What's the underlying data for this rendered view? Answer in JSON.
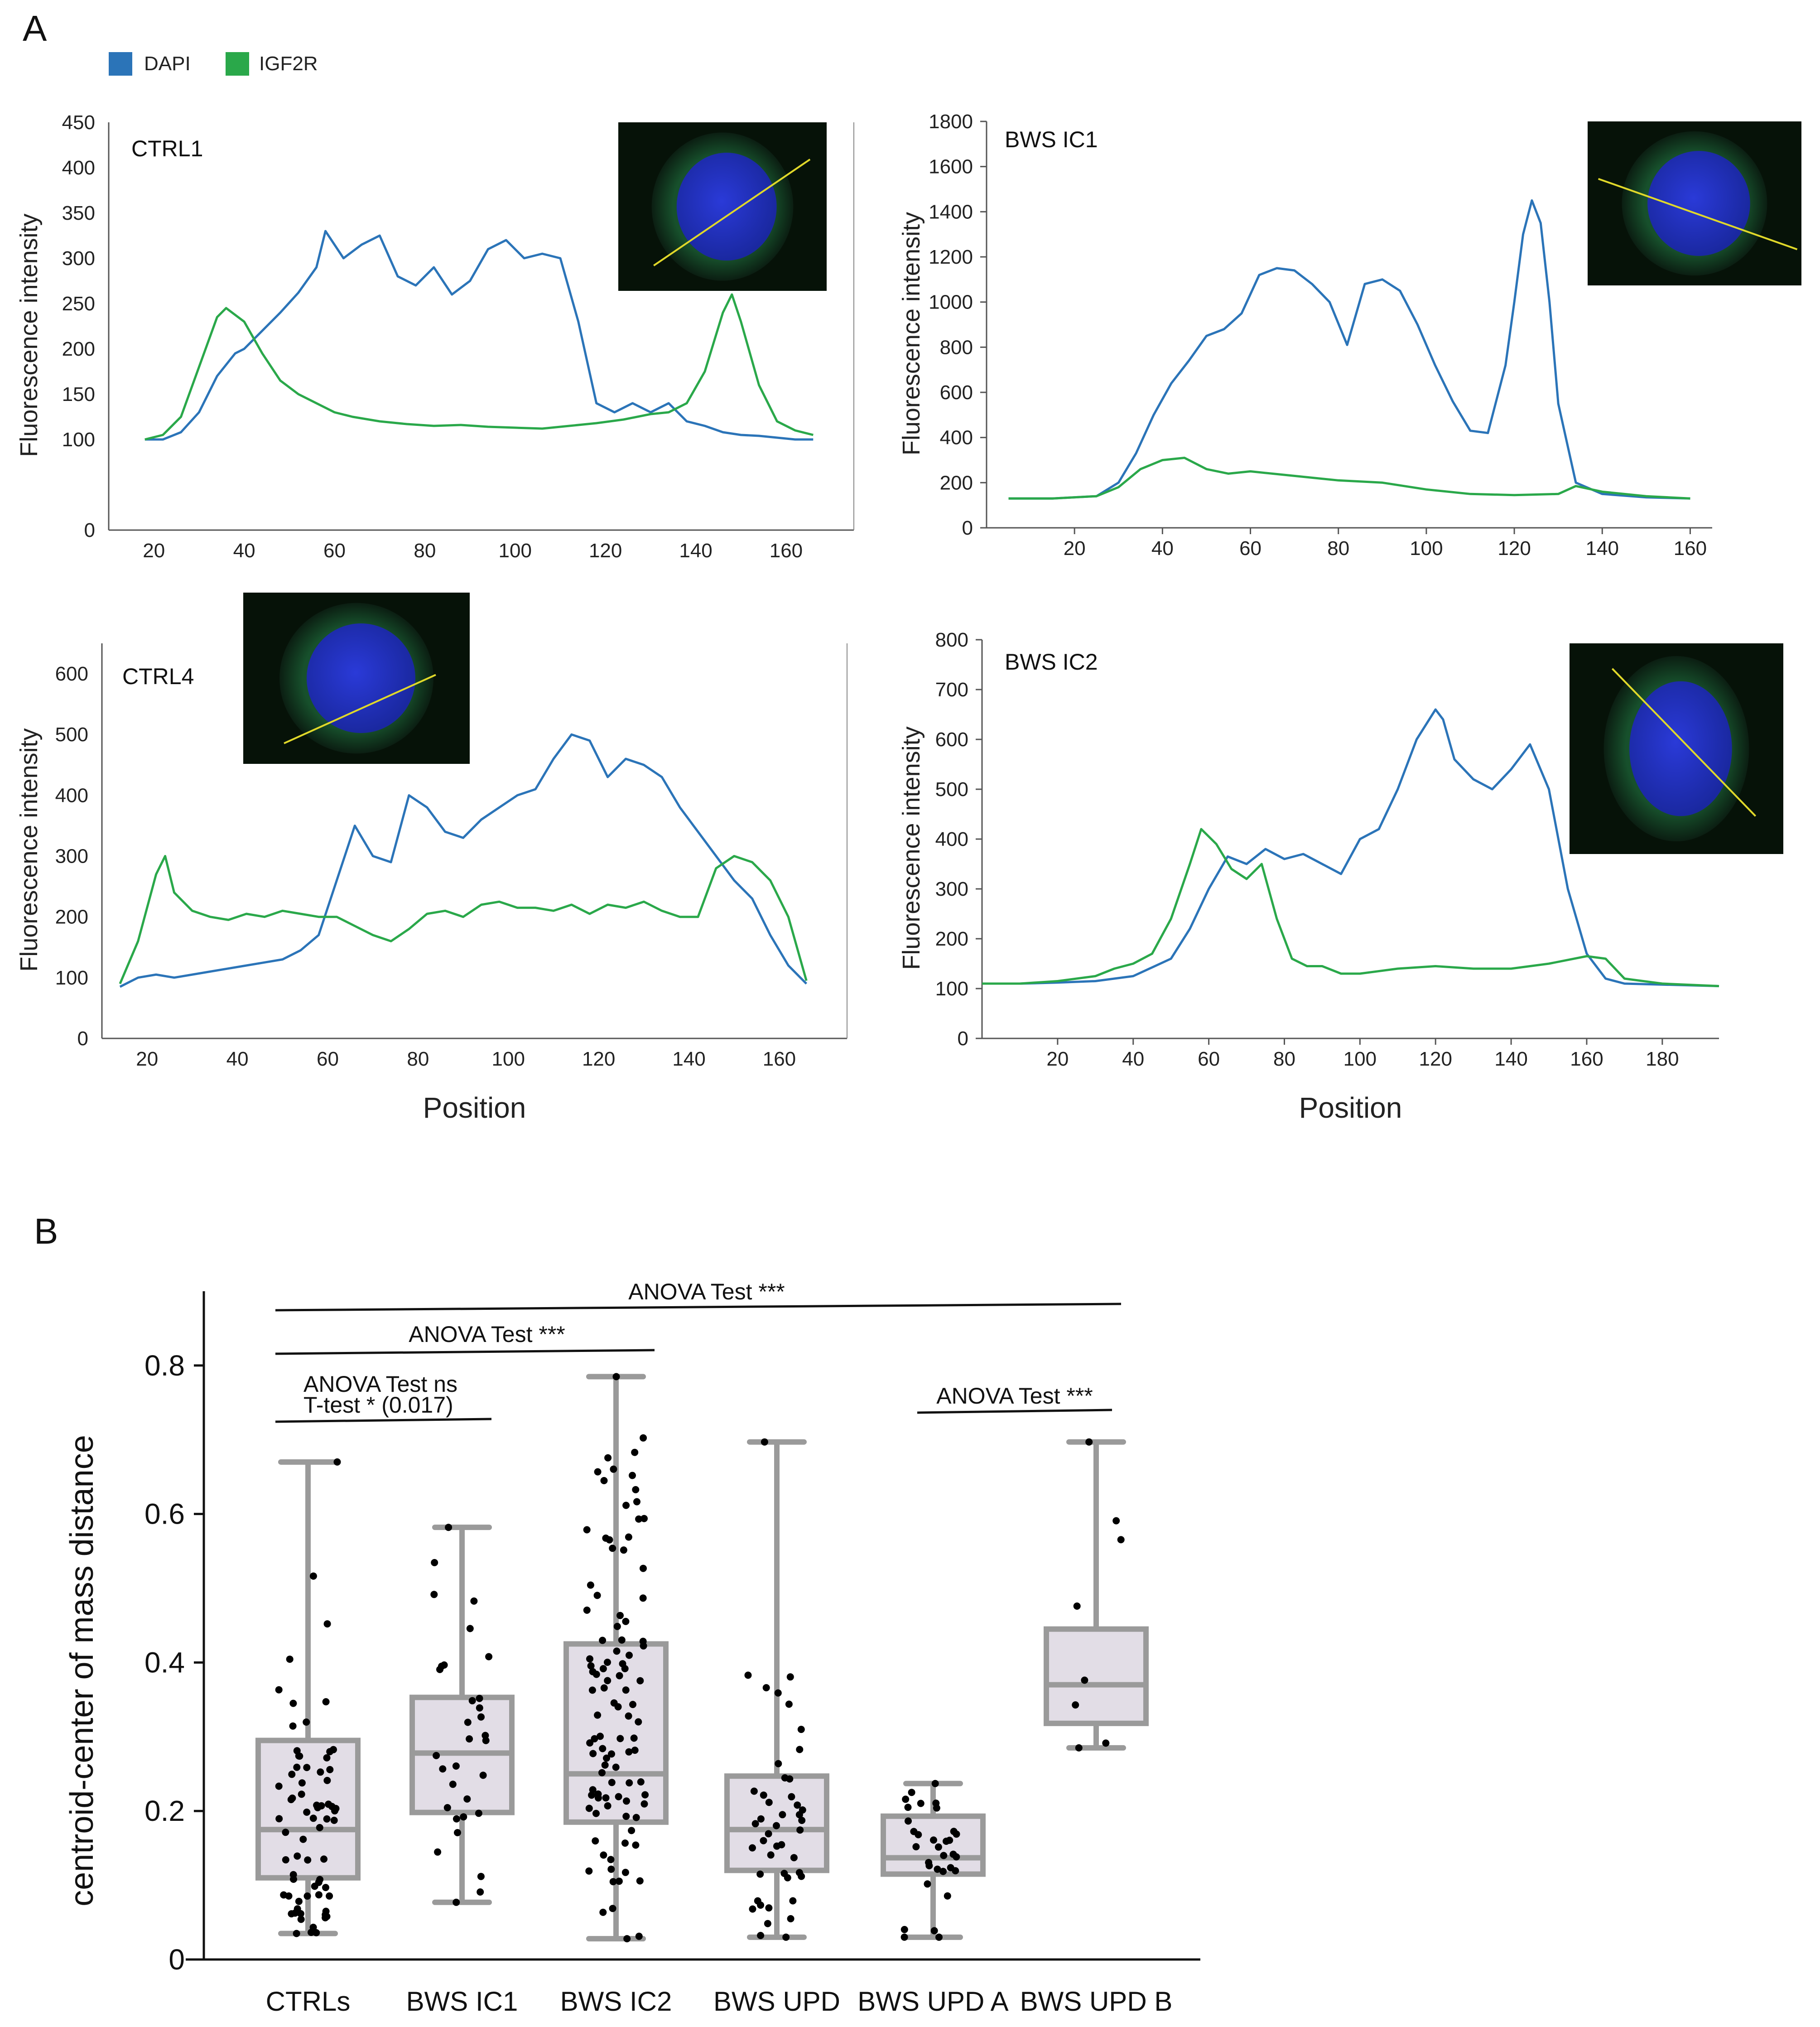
{
  "panel_labels": {
    "a": "A",
    "b": "B"
  },
  "legend": {
    "dapi_label": "DAPI",
    "igf2r_label": "IGF2R",
    "dapi_color": "#2b74b8",
    "igf2r_color": "#2aa84a"
  },
  "chart_data": [
    {
      "id": "ctrl1",
      "type": "line",
      "title": "CTRL1",
      "xlabel": "",
      "ylabel": "Fluorescence intensity",
      "xlim": [
        10,
        175
      ],
      "ylim": [
        0,
        450
      ],
      "xticks": [
        20,
        40,
        60,
        80,
        100,
        120,
        140,
        160
      ],
      "yticks": [
        0,
        100,
        150,
        200,
        250,
        300,
        350,
        400,
        450
      ],
      "inset": "cell image",
      "series": [
        {
          "name": "DAPI",
          "color": "#2b74b8",
          "x": [
            18,
            22,
            26,
            30,
            34,
            38,
            40,
            44,
            48,
            52,
            56,
            58,
            62,
            66,
            70,
            74,
            78,
            82,
            86,
            90,
            94,
            98,
            102,
            106,
            110,
            114,
            118,
            122,
            126,
            130,
            134,
            138,
            142,
            146,
            150,
            154,
            158,
            162,
            166
          ],
          "y": [
            100,
            100,
            108,
            130,
            170,
            195,
            200,
            220,
            240,
            262,
            290,
            330,
            300,
            315,
            325,
            280,
            270,
            290,
            260,
            275,
            310,
            320,
            300,
            305,
            300,
            230,
            140,
            130,
            140,
            130,
            140,
            120,
            115,
            108,
            105,
            104,
            102,
            100,
            100
          ]
        },
        {
          "name": "IGF2R",
          "color": "#2aa84a",
          "x": [
            18,
            22,
            26,
            30,
            34,
            36,
            40,
            44,
            48,
            52,
            56,
            60,
            64,
            70,
            76,
            82,
            88,
            94,
            100,
            106,
            112,
            118,
            124,
            130,
            134,
            138,
            142,
            146,
            148,
            150,
            154,
            158,
            162,
            166
          ],
          "y": [
            100,
            105,
            125,
            180,
            235,
            245,
            230,
            195,
            165,
            150,
            140,
            130,
            125,
            120,
            117,
            115,
            116,
            114,
            113,
            112,
            115,
            118,
            122,
            128,
            130,
            140,
            175,
            240,
            260,
            230,
            160,
            120,
            110,
            105
          ]
        }
      ]
    },
    {
      "id": "bwsic1",
      "type": "line",
      "title": "BWS IC1",
      "xlabel": "",
      "ylabel": "Fluorescence intensity",
      "xlim": [
        0,
        165
      ],
      "ylim": [
        0,
        1800
      ],
      "xticks": [
        20,
        40,
        60,
        80,
        100,
        120,
        140,
        160
      ],
      "yticks": [
        0,
        200,
        400,
        600,
        800,
        1000,
        1200,
        1400,
        1600,
        1800
      ],
      "inset": "cell image",
      "series": [
        {
          "name": "DAPI",
          "color": "#2b74b8",
          "x": [
            5,
            15,
            25,
            30,
            34,
            38,
            42,
            46,
            50,
            54,
            58,
            62,
            66,
            70,
            74,
            78,
            82,
            86,
            90,
            94,
            98,
            102,
            106,
            110,
            114,
            118,
            120,
            122,
            124,
            126,
            128,
            130,
            134,
            140,
            150,
            160
          ],
          "y": [
            130,
            130,
            140,
            200,
            330,
            500,
            640,
            740,
            850,
            880,
            950,
            1120,
            1150,
            1140,
            1080,
            1000,
            810,
            1080,
            1100,
            1050,
            900,
            720,
            560,
            430,
            420,
            720,
            1000,
            1300,
            1450,
            1350,
            1000,
            550,
            200,
            150,
            135,
            130
          ]
        },
        {
          "name": "IGF2R",
          "color": "#2aa84a",
          "x": [
            5,
            15,
            25,
            30,
            35,
            40,
            45,
            50,
            55,
            60,
            70,
            80,
            90,
            100,
            110,
            120,
            130,
            134,
            140,
            150,
            160
          ],
          "y": [
            130,
            130,
            140,
            180,
            260,
            300,
            310,
            260,
            240,
            250,
            230,
            210,
            200,
            170,
            150,
            145,
            150,
            185,
            160,
            140,
            130
          ]
        }
      ]
    },
    {
      "id": "ctrl4",
      "type": "line",
      "title": "CTRL4",
      "xlabel": "Position",
      "ylabel": "Fluorescence intensity",
      "xlim": [
        10,
        175
      ],
      "ylim": [
        0,
        650
      ],
      "xticks": [
        20,
        40,
        60,
        80,
        100,
        120,
        140,
        160
      ],
      "yticks": [
        0,
        100,
        200,
        300,
        400,
        500,
        600
      ],
      "inset": "cell image",
      "series": [
        {
          "name": "DAPI",
          "color": "#2b74b8",
          "x": [
            14,
            18,
            22,
            26,
            30,
            34,
            38,
            42,
            46,
            50,
            54,
            58,
            62,
            66,
            70,
            74,
            78,
            82,
            86,
            90,
            94,
            98,
            102,
            106,
            110,
            114,
            118,
            122,
            126,
            130,
            134,
            138,
            142,
            146,
            150,
            154,
            158,
            162,
            166
          ],
          "y": [
            85,
            100,
            105,
            100,
            105,
            110,
            115,
            120,
            125,
            130,
            145,
            170,
            260,
            350,
            300,
            290,
            400,
            380,
            340,
            330,
            360,
            380,
            400,
            410,
            460,
            500,
            490,
            430,
            460,
            450,
            430,
            380,
            340,
            300,
            260,
            230,
            170,
            120,
            90
          ]
        },
        {
          "name": "IGF2R",
          "color": "#2aa84a",
          "x": [
            14,
            18,
            22,
            24,
            26,
            30,
            34,
            38,
            42,
            46,
            50,
            54,
            58,
            62,
            66,
            70,
            74,
            78,
            82,
            86,
            90,
            94,
            98,
            102,
            106,
            110,
            114,
            118,
            122,
            126,
            130,
            134,
            138,
            142,
            146,
            150,
            154,
            158,
            162,
            166
          ],
          "y": [
            90,
            160,
            270,
            300,
            240,
            210,
            200,
            195,
            205,
            200,
            210,
            205,
            200,
            200,
            185,
            170,
            160,
            180,
            205,
            210,
            200,
            220,
            225,
            215,
            215,
            210,
            220,
            205,
            220,
            215,
            225,
            210,
            200,
            200,
            280,
            300,
            290,
            260,
            200,
            95
          ]
        }
      ]
    },
    {
      "id": "bwsic2",
      "type": "line",
      "title": "BWS IC2",
      "xlabel": "Position",
      "ylabel": "Fluorescence intensity",
      "xlim": [
        0,
        195
      ],
      "ylim": [
        0,
        800
      ],
      "xticks": [
        20,
        40,
        60,
        80,
        100,
        120,
        140,
        160,
        180
      ],
      "yticks": [
        0,
        100,
        200,
        300,
        400,
        500,
        600,
        700,
        800
      ],
      "inset": "cell image",
      "series": [
        {
          "name": "DAPI",
          "color": "#2b74b8",
          "x": [
            0,
            10,
            20,
            30,
            40,
            50,
            55,
            60,
            65,
            70,
            75,
            80,
            85,
            90,
            95,
            100,
            105,
            110,
            115,
            120,
            122,
            125,
            130,
            135,
            140,
            145,
            150,
            155,
            160,
            165,
            170,
            180,
            195
          ],
          "y": [
            110,
            110,
            112,
            115,
            125,
            160,
            220,
            300,
            365,
            350,
            380,
            360,
            370,
            350,
            330,
            400,
            420,
            500,
            600,
            660,
            640,
            560,
            520,
            500,
            540,
            590,
            500,
            300,
            170,
            120,
            110,
            108,
            105
          ]
        },
        {
          "name": "IGF2R",
          "color": "#2aa84a",
          "x": [
            0,
            10,
            20,
            30,
            35,
            40,
            45,
            50,
            55,
            58,
            62,
            66,
            70,
            74,
            78,
            82,
            86,
            90,
            95,
            100,
            110,
            120,
            130,
            140,
            150,
            160,
            165,
            170,
            180,
            195
          ],
          "y": [
            110,
            110,
            115,
            125,
            140,
            150,
            170,
            240,
            350,
            420,
            390,
            340,
            320,
            350,
            240,
            160,
            145,
            145,
            130,
            130,
            140,
            145,
            140,
            140,
            150,
            165,
            160,
            120,
            110,
            105
          ]
        }
      ]
    },
    {
      "id": "boxplot",
      "type": "box",
      "ylabel": "centroid-center of mass distance",
      "ylim": [
        0,
        0.9
      ],
      "yticks": [
        "0",
        "0.2",
        "0.4",
        "0.6",
        "0.8"
      ],
      "ytick_values": [
        0,
        0.2,
        0.4,
        0.6,
        0.8
      ],
      "categories": [
        "CTRLs",
        "BWS IC1",
        "BWS IC2",
        "BWS UPD",
        "BWS UPD A",
        "BWS UPD B"
      ],
      "boxes": [
        {
          "name": "CTRLs",
          "min": 0.035,
          "q1": 0.11,
          "median": 0.175,
          "q3": 0.295,
          "max": 0.67,
          "n": 70
        },
        {
          "name": "BWS IC1",
          "min": 0.077,
          "q1": 0.198,
          "median": 0.278,
          "q3": 0.353,
          "max": 0.582,
          "n": 32
        },
        {
          "name": "BWS IC2",
          "min": 0.028,
          "q1": 0.185,
          "median": 0.25,
          "q3": 0.425,
          "max": 0.785,
          "n": 100
        },
        {
          "name": "BWS UPD",
          "min": 0.03,
          "q1": 0.12,
          "median": 0.175,
          "q3": 0.247,
          "max": 0.697,
          "n": 45
        },
        {
          "name": "BWS UPD A",
          "min": 0.03,
          "q1": 0.115,
          "median": 0.137,
          "q3": 0.193,
          "max": 0.237,
          "n": 32
        },
        {
          "name": "BWS UPD B",
          "min": 0.285,
          "q1": 0.318,
          "median": 0.37,
          "q3": 0.445,
          "max": 0.697,
          "n": 8
        }
      ],
      "annotations": [
        {
          "text": "ANOVA Test ***",
          "from": "CTRLs",
          "to": "BWS UPD B"
        },
        {
          "text": "ANOVA Test ***",
          "from": "CTRLs",
          "to": "BWS IC2"
        },
        {
          "text": "ANOVA Test  ns",
          "text2": "T-test * (0.017)",
          "from": "CTRLs",
          "to": "BWS IC1"
        },
        {
          "text": "ANOVA Test ***",
          "from": "BWS UPD A",
          "to": "BWS UPD B"
        }
      ]
    }
  ]
}
